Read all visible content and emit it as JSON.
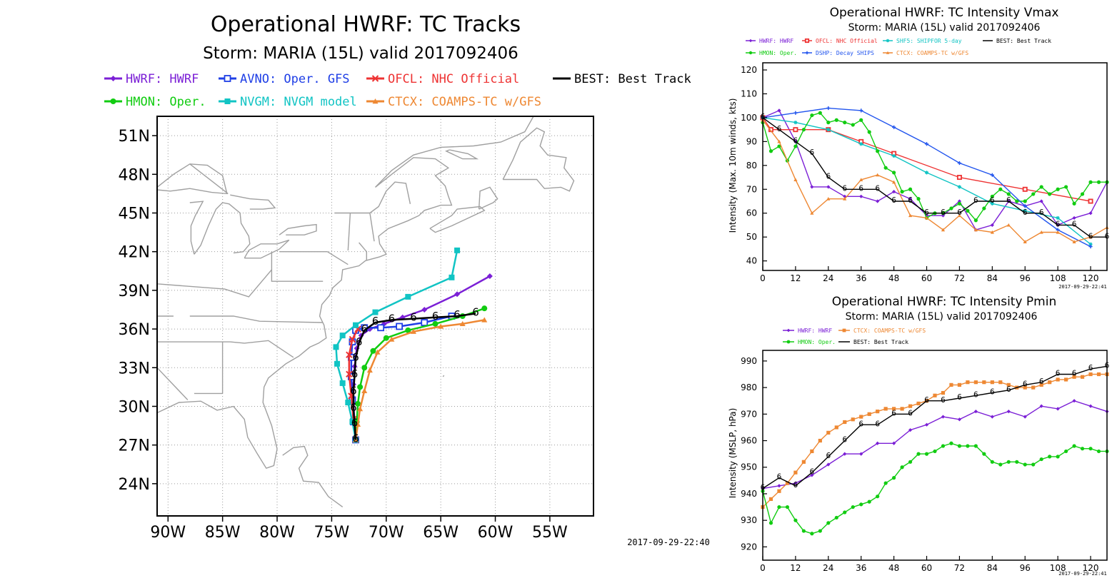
{
  "colors": {
    "hwrf": "#7b1fd6",
    "avno": "#1f3fe6",
    "ofcl": "#ee3333",
    "best": "#000000",
    "hmon": "#11cc11",
    "nvgm": "#11c4c4",
    "ctcx": "#ee8833",
    "shf5": "#11c4c4",
    "dshp": "#2255ee",
    "land": "#a0a0a0",
    "grid": "#9a9a9a"
  },
  "charts": {
    "tracks": {
      "title": "Operational HWRF: TC Tracks",
      "subtitle": "Storm: MARIA (15L) valid 2017092406",
      "timestamp": "2017-09-29-22:40",
      "legend": [
        {
          "key": "hwrf",
          "label": "HWRF: HWRF"
        },
        {
          "key": "avno",
          "label": "AVNO: Oper. GFS"
        },
        {
          "key": "ofcl",
          "label": "OFCL: NHC Official"
        },
        {
          "key": "best",
          "label": "BEST: Best Track"
        },
        {
          "key": "hmon",
          "label": "HMON: Oper."
        },
        {
          "key": "nvgm",
          "label": "NVGM: NVGM model"
        },
        {
          "key": "ctcx",
          "label": "CTCX: COAMPS-TC w/GFS"
        }
      ],
      "xticks": [
        "90W",
        "85W",
        "80W",
        "75W",
        "70W",
        "65W",
        "60W",
        "55W"
      ],
      "yticks": [
        "51N",
        "48N",
        "45N",
        "42N",
        "39N",
        "36N",
        "33N",
        "30N",
        "27N",
        "24N"
      ]
    },
    "vmax": {
      "title": "Operational HWRF: TC Intensity Vmax",
      "subtitle": "Storm: MARIA (15L) valid 2017092406",
      "ylabel": "Intensity (Max. 10m winds, kts)",
      "timestamp": "2017-09-29-22:41",
      "legend": [
        {
          "key": "hwrf",
          "label": "HWRF: HWRF"
        },
        {
          "key": "ofcl",
          "label": "OFCL: NHC Official"
        },
        {
          "key": "shf5",
          "label": "SHF5: SHIPFOR 5-day"
        },
        {
          "key": "best",
          "label": "BEST: Best Track"
        },
        {
          "key": "hmon",
          "label": "HMON: Oper."
        },
        {
          "key": "dshp",
          "label": "DSHP: Decay SHIPS"
        },
        {
          "key": "ctcx",
          "label": "CTCX: COAMPS-TC w/GFS"
        }
      ],
      "xticks": [
        "0",
        "12",
        "24",
        "36",
        "48",
        "60",
        "72",
        "84",
        "96",
        "108",
        "120"
      ],
      "yticks": [
        "40",
        "50",
        "60",
        "70",
        "80",
        "90",
        "100",
        "110",
        "120"
      ]
    },
    "pmin": {
      "title": "Operational HWRF: TC Intensity Pmin",
      "subtitle": "Storm: MARIA (15L) valid 2017092406",
      "ylabel": "Intensity (MSLP, hPa)",
      "timestamp": "2017-09-29-22:41",
      "legend": [
        {
          "key": "hwrf",
          "label": "HWRF: HWRF"
        },
        {
          "key": "ctcx",
          "label": "CTCX: COAMPS-TC w/GFS"
        },
        {
          "key": "hmon",
          "label": "HMON: Oper."
        },
        {
          "key": "best",
          "label": "BEST: Best Track"
        }
      ],
      "xticks": [
        "0",
        "12",
        "24",
        "36",
        "48",
        "60",
        "72",
        "84",
        "96",
        "108",
        "120"
      ],
      "yticks": [
        "920",
        "930",
        "940",
        "950",
        "960",
        "970",
        "980",
        "990"
      ]
    }
  },
  "chart_data": [
    {
      "type": "line",
      "title": "Operational HWRF: TC Tracks",
      "subtitle": "Storm: MARIA (15L) valid 2017092406",
      "xlabel": "",
      "ylabel": "",
      "xlim": [
        -91,
        -51
      ],
      "ylim": [
        21.5,
        52.5
      ],
      "grid": true,
      "series": [
        {
          "name": "HWRF: HWRF",
          "key": "hwrf",
          "marker": "diamond",
          "lon": [
            -72.8,
            -72.9,
            -73.0,
            -73.0,
            -72.9,
            -72.7,
            -72.3,
            -71.5,
            -70.2,
            -68.5,
            -66.5,
            -63.5,
            -60.5
          ],
          "lat": [
            27.4,
            28.8,
            30.2,
            31.7,
            33.1,
            34.5,
            35.5,
            36.0,
            36.4,
            36.9,
            37.5,
            38.7,
            40.1
          ]
        },
        {
          "name": "AVNO: Oper. GFS",
          "key": "avno",
          "marker": "square-open",
          "lon": [
            -72.8,
            -73.0,
            -73.1,
            -73.2,
            -73.2,
            -73.1,
            -72.8,
            -72.0,
            -70.5,
            -68.8,
            -66.5,
            -64.0
          ],
          "lat": [
            27.4,
            28.8,
            30.5,
            32.3,
            33.8,
            35.0,
            35.9,
            36.1,
            36.1,
            36.2,
            36.5,
            37.0
          ]
        },
        {
          "name": "OFCL: NHC Official",
          "key": "ofcl",
          "marker": "x",
          "lon": [
            -72.8,
            -73.0,
            -73.2,
            -73.4,
            -73.4,
            -73.1,
            -72.6
          ],
          "lat": [
            27.4,
            29.0,
            30.8,
            32.5,
            34.0,
            35.2,
            36.0
          ]
        },
        {
          "name": "HMON: Oper.",
          "key": "hmon",
          "marker": "circle",
          "lon": [
            -72.8,
            -72.7,
            -72.6,
            -72.4,
            -72.0,
            -71.2,
            -70.0,
            -68.0,
            -65.5,
            -63.0,
            -61.0
          ],
          "lat": [
            27.4,
            28.8,
            30.2,
            31.5,
            33.0,
            34.3,
            35.3,
            35.9,
            36.4,
            37.0,
            37.6
          ]
        },
        {
          "name": "NVGM: NVGM model",
          "key": "nvgm",
          "marker": "square",
          "lon": [
            -72.8,
            -73.1,
            -73.5,
            -74.0,
            -74.5,
            -74.6,
            -74.0,
            -72.8,
            -71.0,
            -68.0,
            -64.0,
            -63.5
          ],
          "lat": [
            27.4,
            28.8,
            30.3,
            31.8,
            33.3,
            34.6,
            35.5,
            36.3,
            37.3,
            38.5,
            40.0,
            42.1
          ]
        },
        {
          "name": "CTCX: COAMPS-TC w/GFS",
          "key": "ctcx",
          "marker": "triangle",
          "lon": [
            -72.8,
            -72.6,
            -72.4,
            -72.0,
            -71.5,
            -70.8,
            -69.5,
            -67.5,
            -65.0,
            -63.0,
            -61.0
          ],
          "lat": [
            27.4,
            28.6,
            29.8,
            31.2,
            32.8,
            34.2,
            35.2,
            35.8,
            36.2,
            36.4,
            36.7
          ]
        },
        {
          "name": "BEST: Best Track",
          "key": "best",
          "marker": "hurricane",
          "lon": [
            -72.8,
            -72.9,
            -73.0,
            -73.0,
            -72.9,
            -72.8,
            -72.5,
            -72.0,
            -71.0,
            -69.5,
            -67.5,
            -65.5,
            -63.5,
            -61.8
          ],
          "lat": [
            27.4,
            28.6,
            29.8,
            31.1,
            32.4,
            33.7,
            34.9,
            35.9,
            36.5,
            36.7,
            36.8,
            36.9,
            37.0,
            37.2
          ]
        }
      ]
    },
    {
      "type": "line",
      "title": "Operational HWRF: TC Intensity Vmax",
      "subtitle": "Storm: MARIA (15L) valid 2017092406",
      "xlabel": "",
      "ylabel": "Intensity (Max. 10m winds, kts)",
      "xlim": [
        0,
        126
      ],
      "ylim": [
        36,
        123
      ],
      "grid": false,
      "series": [
        {
          "name": "HWRF: HWRF",
          "key": "hwrf",
          "marker": "diamond",
          "x": [
            0,
            6,
            12,
            18,
            24,
            30,
            36,
            42,
            48,
            54,
            60,
            66,
            72,
            78,
            84,
            90,
            96,
            102,
            108,
            114,
            120,
            126
          ],
          "y": [
            100,
            103,
            90,
            71,
            71,
            67,
            67,
            65,
            69,
            66,
            59,
            59,
            65,
            53,
            55,
            65,
            63,
            65,
            55,
            58,
            60,
            73
          ]
        },
        {
          "name": "OFCL: NHC Official",
          "key": "ofcl",
          "marker": "square-open",
          "x": [
            0,
            3,
            12,
            24,
            36,
            48,
            72,
            96,
            120
          ],
          "y": [
            100,
            95,
            95,
            95,
            90,
            85,
            75,
            70,
            65
          ]
        },
        {
          "name": "SHF5: SHIPFOR 5-day",
          "key": "shf5",
          "marker": "asterisk",
          "x": [
            0,
            12,
            24,
            36,
            48,
            60,
            72,
            84,
            96,
            108,
            120
          ],
          "y": [
            100,
            98,
            95,
            89,
            84,
            77,
            71,
            64,
            61,
            58,
            47
          ]
        },
        {
          "name": "HMON: Oper.",
          "key": "hmon",
          "marker": "circle",
          "x": [
            0,
            3,
            6,
            9,
            12,
            15,
            18,
            21,
            24,
            27,
            30,
            33,
            36,
            39,
            42,
            45,
            48,
            51,
            54,
            57,
            60,
            63,
            66,
            69,
            72,
            75,
            78,
            81,
            84,
            87,
            90,
            93,
            96,
            99,
            102,
            105,
            108,
            111,
            114,
            117,
            120,
            123,
            126
          ],
          "y": [
            98,
            86,
            88,
            82,
            88,
            95,
            101,
            102,
            98,
            99,
            98,
            97,
            99,
            94,
            86,
            79,
            77,
            69,
            70,
            66,
            58,
            60,
            60,
            62,
            64,
            61,
            57,
            62,
            67,
            70,
            68,
            65,
            65,
            68,
            71,
            68,
            70,
            71,
            64,
            68,
            73,
            73,
            73
          ]
        },
        {
          "name": "DSHP: Decay SHIPS",
          "key": "dshp",
          "marker": "plus",
          "x": [
            0,
            12,
            24,
            36,
            48,
            60,
            72,
            84,
            96,
            108,
            120
          ],
          "y": [
            100,
            102,
            104,
            103,
            96,
            89,
            81,
            76,
            63,
            53,
            46
          ]
        },
        {
          "name": "CTCX: COAMPS-TC w/GFS",
          "key": "ctcx",
          "marker": "triangle",
          "x": [
            0,
            6,
            12,
            18,
            24,
            30,
            36,
            42,
            48,
            54,
            60,
            66,
            72,
            78,
            84,
            90,
            96,
            102,
            108,
            114,
            120,
            126
          ],
          "y": [
            99,
            90,
            74,
            60,
            66,
            66,
            74,
            76,
            73,
            59,
            58,
            53,
            59,
            53,
            52,
            55,
            48,
            52,
            52,
            48,
            50,
            54
          ]
        },
        {
          "name": "BEST: Best Track",
          "key": "best",
          "marker": "hurricane",
          "x": [
            0,
            6,
            12,
            18,
            24,
            30,
            36,
            42,
            48,
            54,
            60,
            66,
            72,
            78,
            84,
            90,
            96,
            102,
            108,
            114,
            120,
            126
          ],
          "y": [
            100,
            95,
            90,
            85,
            75,
            70,
            70,
            70,
            65,
            65,
            60,
            60,
            60,
            65,
            65,
            65,
            60,
            60,
            55,
            55,
            50,
            50
          ]
        }
      ]
    },
    {
      "type": "line",
      "title": "Operational HWRF: TC Intensity Pmin",
      "subtitle": "Storm: MARIA (15L) valid 2017092406",
      "xlabel": "",
      "ylabel": "Intensity (MSLP, hPa)",
      "xlim": [
        0,
        126
      ],
      "ylim": [
        915,
        994
      ],
      "grid": false,
      "series": [
        {
          "name": "HWRF: HWRF",
          "key": "hwrf",
          "marker": "diamond",
          "x": [
            0,
            6,
            12,
            18,
            24,
            30,
            36,
            42,
            48,
            54,
            60,
            66,
            72,
            78,
            84,
            90,
            96,
            102,
            108,
            114,
            120,
            126
          ],
          "y": [
            942,
            943,
            944,
            947,
            951,
            955,
            955,
            959,
            959,
            964,
            966,
            969,
            968,
            971,
            969,
            971,
            969,
            973,
            972,
            975,
            973,
            971
          ]
        },
        {
          "name": "CTCX: COAMPS-TC w/GFS",
          "key": "ctcx",
          "marker": "square",
          "x": [
            0,
            3,
            6,
            9,
            12,
            15,
            18,
            21,
            24,
            27,
            30,
            33,
            36,
            39,
            42,
            45,
            48,
            51,
            54,
            57,
            60,
            63,
            66,
            69,
            72,
            75,
            78,
            81,
            84,
            87,
            90,
            93,
            96,
            99,
            102,
            105,
            108,
            111,
            114,
            117,
            120,
            123,
            126
          ],
          "y": [
            935,
            938,
            941,
            944,
            948,
            952,
            956,
            960,
            963,
            965,
            967,
            968,
            969,
            970,
            971,
            972,
            972,
            972,
            973,
            974,
            975,
            977,
            978,
            981,
            981,
            982,
            982,
            982,
            982,
            982,
            981,
            980,
            980,
            980,
            981,
            982,
            983,
            983,
            984,
            984,
            985,
            985,
            985
          ]
        },
        {
          "name": "HMON: Oper.",
          "key": "hmon",
          "marker": "circle",
          "x": [
            0,
            3,
            6,
            9,
            12,
            15,
            18,
            21,
            24,
            27,
            30,
            33,
            36,
            39,
            42,
            45,
            48,
            51,
            54,
            57,
            60,
            63,
            66,
            69,
            72,
            75,
            78,
            81,
            84,
            87,
            90,
            93,
            96,
            99,
            102,
            105,
            108,
            111,
            114,
            117,
            120,
            123,
            126
          ],
          "y": [
            941,
            929,
            935,
            935,
            930,
            926,
            925,
            926,
            929,
            931,
            933,
            935,
            936,
            937,
            939,
            944,
            946,
            950,
            952,
            955,
            955,
            956,
            958,
            959,
            958,
            958,
            958,
            955,
            952,
            951,
            952,
            952,
            951,
            951,
            953,
            954,
            954,
            956,
            958,
            957,
            957,
            956,
            956
          ]
        },
        {
          "name": "BEST: Best Track",
          "key": "best",
          "marker": "hurricane",
          "x": [
            0,
            6,
            12,
            18,
            24,
            30,
            36,
            42,
            48,
            54,
            60,
            66,
            72,
            78,
            84,
            90,
            96,
            102,
            108,
            114,
            120,
            126
          ],
          "y": [
            942,
            946,
            943,
            948,
            954,
            960,
            966,
            966,
            970,
            970,
            975,
            975,
            976,
            977,
            978,
            979,
            981,
            982,
            985,
            985,
            987,
            988
          ]
        }
      ]
    }
  ]
}
